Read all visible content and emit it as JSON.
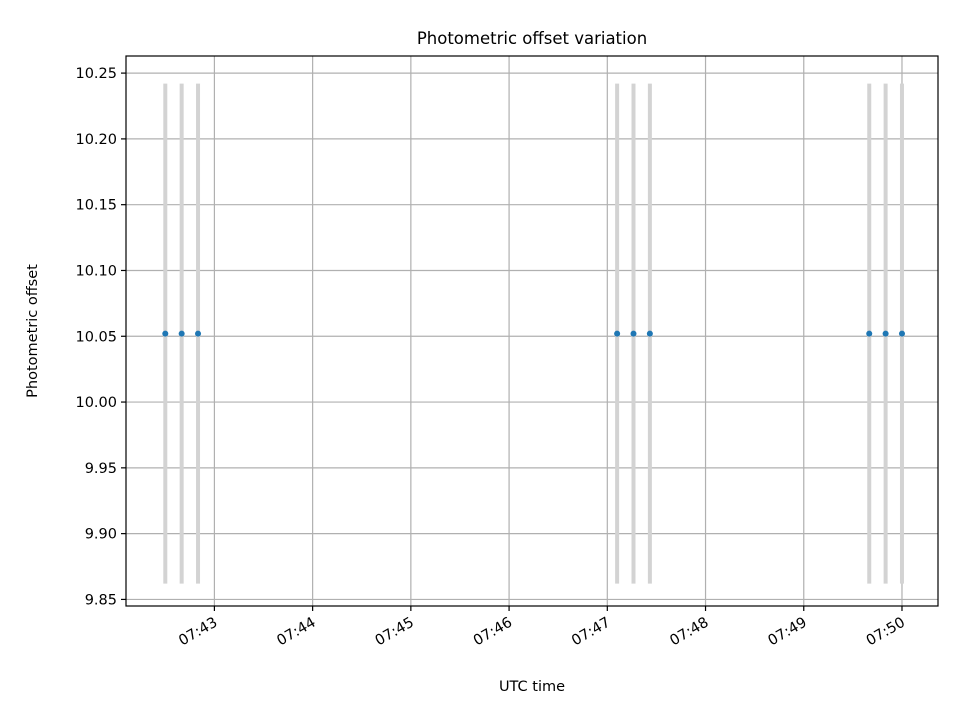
{
  "chart_data": {
    "type": "scatter",
    "title": "Photometric offset variation",
    "xlabel": "UTC time",
    "ylabel": "Photometric offset",
    "x_axis": {
      "kind": "time",
      "range": [
        "07:42:06",
        "07:50:22"
      ],
      "ticks": [
        "07:43",
        "07:44",
        "07:45",
        "07:46",
        "07:47",
        "07:48",
        "07:49",
        "07:50"
      ]
    },
    "y_axis": {
      "range": [
        9.845,
        10.263
      ],
      "ticks": [
        "9.85",
        "9.90",
        "9.95",
        "10.00",
        "10.05",
        "10.10",
        "10.15",
        "10.20",
        "10.25"
      ]
    },
    "grid": true,
    "legend": "none",
    "series": [
      {
        "points": [
          {
            "x": "07:42:30",
            "y": 10.052,
            "err": 0.19
          },
          {
            "x": "07:42:40",
            "y": 10.052,
            "err": 0.19
          },
          {
            "x": "07:42:50",
            "y": 10.052,
            "err": 0.19
          },
          {
            "x": "07:47:06",
            "y": 10.052,
            "err": 0.19
          },
          {
            "x": "07:47:16",
            "y": 10.052,
            "err": 0.19
          },
          {
            "x": "07:47:26",
            "y": 10.052,
            "err": 0.19
          },
          {
            "x": "07:49:40",
            "y": 10.052,
            "err": 0.19
          },
          {
            "x": "07:49:50",
            "y": 10.052,
            "err": 0.19
          },
          {
            "x": "07:50:00",
            "y": 10.052,
            "err": 0.19
          }
        ]
      }
    ],
    "colors": {
      "point": "#1f77b4",
      "errorbar": "#d3d3d3",
      "grid": "#b0b0b0",
      "spine": "#000000"
    }
  }
}
